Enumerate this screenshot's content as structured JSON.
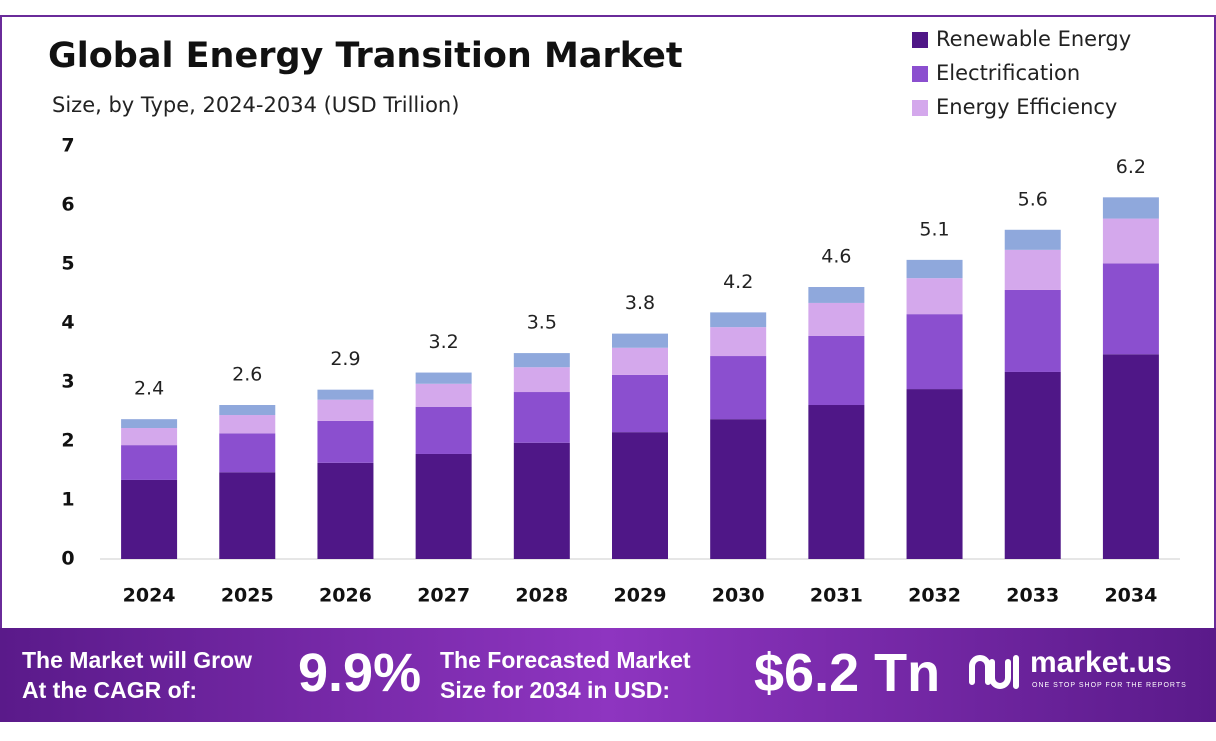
{
  "chart_data": {
    "type": "stacked-bar",
    "title": "Global Energy Transition Market",
    "subtitle": "Size, by Type, 2024-2034 (USD Trillion)",
    "categories": [
      "2024",
      "2025",
      "2026",
      "2027",
      "2028",
      "2029",
      "2030",
      "2031",
      "2032",
      "2033",
      "2034"
    ],
    "series": [
      {
        "name": "Renewable Energy",
        "color": "#4f1787",
        "values": [
          1.34,
          1.47,
          1.63,
          1.78,
          1.97,
          2.15,
          2.37,
          2.61,
          2.88,
          3.17,
          3.47
        ]
      },
      {
        "name": "Electrification",
        "color": "#8b4fcf",
        "values": [
          0.59,
          0.66,
          0.71,
          0.8,
          0.86,
          0.97,
          1.07,
          1.17,
          1.27,
          1.39,
          1.54
        ]
      },
      {
        "name": "Energy Efficiency",
        "color": "#d4a8ec",
        "values": [
          0.29,
          0.31,
          0.36,
          0.39,
          0.42,
          0.46,
          0.49,
          0.56,
          0.61,
          0.68,
          0.76
        ]
      },
      {
        "color": "#8fa8dc",
        "values": [
          0.15,
          0.17,
          0.17,
          0.19,
          0.24,
          0.24,
          0.25,
          0.27,
          0.31,
          0.34,
          0.36
        ]
      }
    ],
    "totals": [
      2.4,
      2.6,
      2.9,
      3.2,
      3.5,
      3.8,
      4.2,
      4.6,
      5.1,
      5.6,
      6.2
    ],
    "ylim": [
      0,
      7
    ],
    "yticks": [
      0,
      1,
      2,
      3,
      4,
      5,
      6,
      7
    ],
    "grid": false,
    "legend": "top-right"
  },
  "banner": {
    "cagr_text": [
      "The Market will Grow",
      "At the CAGR of:"
    ],
    "cagr": "9.9%",
    "forecast_text": [
      "The Forecasted Market",
      "Size for 2034 in USD:"
    ],
    "forecast": "$6.2 Tn",
    "brand": "market.us",
    "tagline": "ONE STOP SHOP FOR THE REPORTS"
  }
}
